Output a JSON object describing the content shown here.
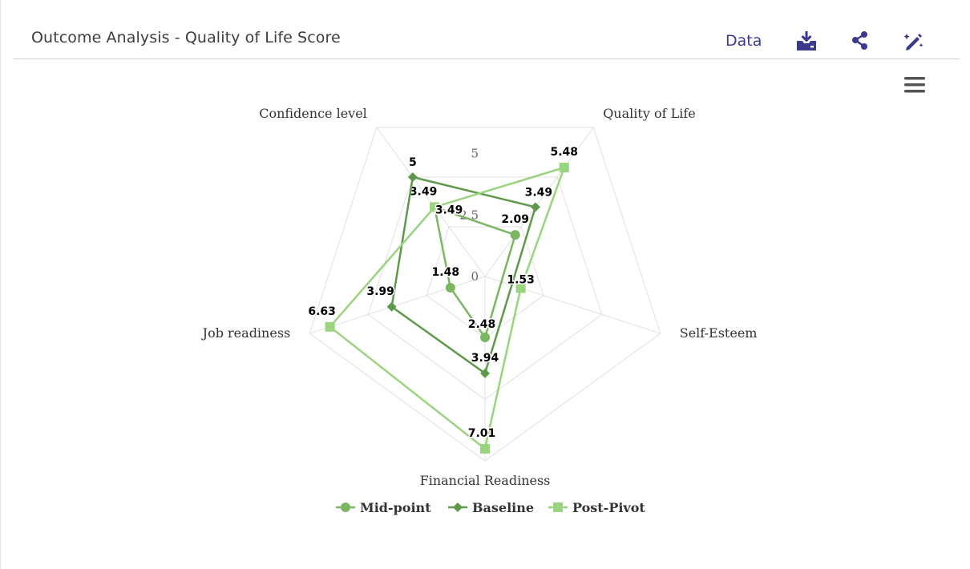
{
  "header": {
    "title": "Outcome Analysis - Quality of Life Score",
    "data_label": "Data",
    "icons": [
      "download-icon",
      "share-icon",
      "edit-icon"
    ]
  },
  "menu": {
    "icon": "hamburger-menu-icon"
  },
  "chart_data": {
    "type": "radar",
    "categories": [
      "Quality of Life",
      "Self-Esteem",
      "Financial Readiness",
      "Job readiness",
      "Confidence level"
    ],
    "radial_ticks": [
      "0",
      "2.5",
      "5"
    ],
    "radial_range": [
      0,
      7.5
    ],
    "grid": true,
    "legend_placement": "bottom",
    "series": [
      {
        "name": "Mid-point",
        "values": [
          2.09,
          null,
          2.48,
          1.48,
          3.49
        ],
        "color": "#7bb661",
        "marker": "circle"
      },
      {
        "name": "Baseline",
        "values": [
          3.49,
          null,
          3.94,
          3.99,
          5
        ],
        "color": "#5f9a4a",
        "marker": "diamond"
      },
      {
        "name": "Post-Pivot",
        "values": [
          5.48,
          1.53,
          7.01,
          6.63,
          3.49
        ],
        "color": "#9ad47f",
        "marker": "square"
      }
    ]
  }
}
